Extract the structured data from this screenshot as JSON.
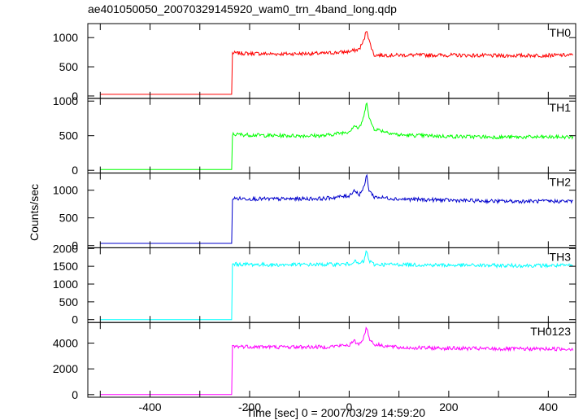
{
  "window": {
    "title": "ae401050050_20070329145920_wam0_trn_4band_long.qdp"
  },
  "chart_data": {
    "type": "line",
    "title": "ae401050050_20070329145920_wam0_trn_4band_long.qdp",
    "xlabel": "Time [sec] 0 = 2007/03/29 14:59:20",
    "ylabel": "Counts/sec",
    "xlim": [
      -525,
      455
    ],
    "xticks": [
      -400,
      -200,
      0,
      200,
      400
    ],
    "grid": false,
    "panels": [
      {
        "name": "TH0",
        "color": "#ff0000",
        "ylim": [
          -40,
          1240
        ],
        "yticks": [
          0,
          500,
          1000
        ],
        "x": [
          -500,
          -236,
          -235,
          -150,
          -50,
          0,
          20,
          30,
          35,
          40,
          50,
          100,
          200,
          300,
          450
        ],
        "y": [
          28,
          28,
          735,
          720,
          730,
          760,
          800,
          960,
          1150,
          950,
          700,
          700,
          700,
          690,
          700
        ]
      },
      {
        "name": "TH1",
        "color": "#00ff00",
        "ylim": [
          -40,
          1040
        ],
        "yticks": [
          0,
          500,
          1000
        ],
        "x": [
          -500,
          -236,
          -235,
          -150,
          -50,
          0,
          10,
          20,
          30,
          35,
          40,
          50,
          100,
          200,
          300,
          450
        ],
        "y": [
          10,
          10,
          520,
          500,
          500,
          560,
          650,
          600,
          780,
          1020,
          750,
          600,
          510,
          490,
          480,
          480
        ]
      },
      {
        "name": "TH2",
        "color": "#0000cc",
        "ylim": [
          -40,
          1310
        ],
        "yticks": [
          0,
          500,
          1000
        ],
        "x": [
          -500,
          -236,
          -235,
          -150,
          -50,
          0,
          10,
          20,
          30,
          35,
          40,
          50,
          100,
          200,
          300,
          450
        ],
        "y": [
          40,
          40,
          850,
          840,
          850,
          900,
          1000,
          920,
          1050,
          1280,
          1000,
          880,
          840,
          820,
          800,
          800
        ]
      },
      {
        "name": "TH3",
        "color": "#00ffff",
        "ylim": [
          -80,
          2020
        ],
        "yticks": [
          0,
          500,
          1000,
          1500,
          2000
        ],
        "x": [
          -500,
          -236,
          -235,
          -150,
          -50,
          0,
          10,
          20,
          30,
          35,
          40,
          50,
          100,
          200,
          300,
          450
        ],
        "y": [
          0,
          0,
          1560,
          1540,
          1550,
          1560,
          1650,
          1560,
          1650,
          1950,
          1650,
          1550,
          1550,
          1530,
          1520,
          1520
        ]
      },
      {
        "name": "TH0123",
        "color": "#ff00ff",
        "ylim": [
          -200,
          5600
        ],
        "yticks": [
          0,
          2000,
          4000
        ],
        "x": [
          -500,
          -236,
          -235,
          -150,
          -50,
          0,
          10,
          20,
          30,
          35,
          40,
          50,
          100,
          200,
          300,
          450
        ],
        "y": [
          0,
          0,
          3750,
          3700,
          3700,
          3850,
          4150,
          3900,
          4500,
          5300,
          4400,
          3900,
          3650,
          3600,
          3550,
          3550
        ]
      }
    ]
  }
}
